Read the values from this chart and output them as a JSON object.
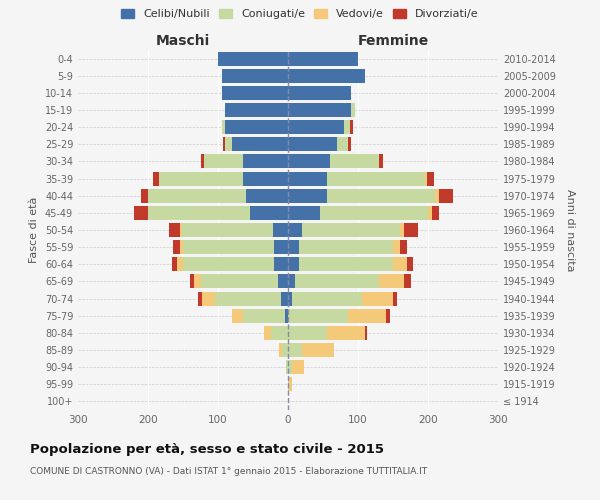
{
  "age_groups": [
    "100+",
    "95-99",
    "90-94",
    "85-89",
    "80-84",
    "75-79",
    "70-74",
    "65-69",
    "60-64",
    "55-59",
    "50-54",
    "45-49",
    "40-44",
    "35-39",
    "30-34",
    "25-29",
    "20-24",
    "15-19",
    "10-14",
    "5-9",
    "0-4"
  ],
  "birth_years": [
    "≤ 1914",
    "1915-1919",
    "1920-1924",
    "1925-1929",
    "1930-1934",
    "1935-1939",
    "1940-1944",
    "1945-1949",
    "1950-1954",
    "1955-1959",
    "1960-1964",
    "1965-1969",
    "1970-1974",
    "1975-1979",
    "1980-1984",
    "1985-1989",
    "1990-1994",
    "1995-1999",
    "2000-2004",
    "2005-2009",
    "2010-2014"
  ],
  "maschi": {
    "celibi": [
      0,
      0,
      0,
      0,
      0,
      5,
      10,
      15,
      20,
      20,
      22,
      55,
      60,
      65,
      65,
      80,
      90,
      90,
      95,
      95,
      100
    ],
    "coniugati": [
      0,
      0,
      3,
      8,
      25,
      60,
      95,
      110,
      130,
      130,
      130,
      145,
      140,
      120,
      55,
      10,
      5,
      0,
      0,
      0,
      0
    ],
    "vedovi": [
      0,
      0,
      0,
      5,
      10,
      15,
      18,
      10,
      8,
      5,
      3,
      0,
      0,
      0,
      0,
      0,
      0,
      0,
      0,
      0,
      0
    ],
    "divorziati": [
      0,
      0,
      0,
      0,
      0,
      0,
      5,
      5,
      8,
      10,
      15,
      20,
      10,
      8,
      5,
      3,
      0,
      0,
      0,
      0,
      0
    ]
  },
  "femmine": {
    "nubili": [
      0,
      0,
      0,
      0,
      0,
      0,
      5,
      10,
      15,
      15,
      20,
      45,
      55,
      55,
      60,
      70,
      80,
      90,
      90,
      110,
      100
    ],
    "coniugate": [
      0,
      2,
      5,
      20,
      55,
      85,
      100,
      120,
      135,
      135,
      140,
      155,
      155,
      140,
      70,
      15,
      8,
      5,
      0,
      0,
      0
    ],
    "vedove": [
      0,
      3,
      18,
      45,
      55,
      55,
      45,
      35,
      20,
      10,
      5,
      5,
      5,
      3,
      0,
      0,
      0,
      0,
      0,
      0,
      0
    ],
    "divorziate": [
      0,
      0,
      0,
      0,
      3,
      5,
      5,
      10,
      8,
      10,
      20,
      10,
      20,
      10,
      5,
      5,
      5,
      0,
      0,
      0,
      0
    ]
  },
  "colors": {
    "celibi_nubili": "#4472a8",
    "coniugati": "#c5d9a0",
    "vedovi": "#f5c97a",
    "divorziati": "#c0392b"
  },
  "title": "Popolazione per età, sesso e stato civile - 2015",
  "subtitle": "COMUNE DI CASTRONNO (VA) - Dati ISTAT 1° gennaio 2015 - Elaborazione TUTTITALIA.IT",
  "xlabel_left": "Maschi",
  "xlabel_right": "Femmine",
  "ylabel_left": "Fasce di età",
  "ylabel_right": "Anni di nascita",
  "legend_labels": [
    "Celibi/Nubili",
    "Coniugati/e",
    "Vedovi/e",
    "Divorziati/e"
  ],
  "xlim": 300,
  "bg_color": "#f5f5f5",
  "plot_bg": "#f5f5f5"
}
